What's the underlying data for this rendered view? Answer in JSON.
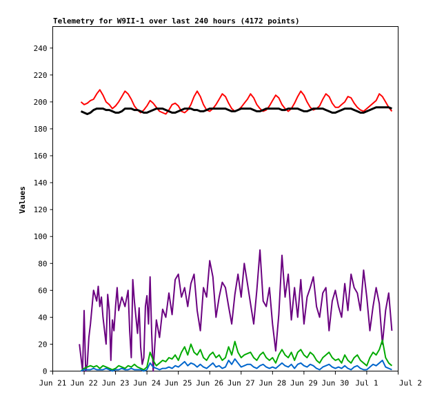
{
  "chart_data": {
    "type": "line",
    "title": "Telemetry for W9II-1 over last 240 hours (4172 points)",
    "ylabel": "Values",
    "xlabel": "",
    "x_tick_labels": [
      "Jun 21",
      "Jun 22",
      "Jun 23",
      "Jun 24",
      "Jun 25",
      "Jun 26",
      "Jun 27",
      "Jun 28",
      "Jun 29",
      "Jun 30",
      "Jul 1",
      "Jul 2"
    ],
    "y_ticks": [
      0,
      20,
      40,
      60,
      80,
      100,
      120,
      140,
      160,
      180,
      200,
      220,
      240
    ],
    "xlim": [
      0,
      11
    ],
    "ylim": [
      0,
      256
    ],
    "grid": false,
    "series": [
      {
        "color": "#ff0000",
        "x": [
          0.9,
          1.0,
          1.1,
          1.2,
          1.3,
          1.4,
          1.5,
          1.6,
          1.7,
          1.8,
          1.9,
          2.0,
          2.1,
          2.2,
          2.3,
          2.4,
          2.5,
          2.6,
          2.7,
          2.8,
          2.9,
          3.0,
          3.1,
          3.2,
          3.3,
          3.4,
          3.5,
          3.6,
          3.7,
          3.8,
          3.9,
          4.0,
          4.1,
          4.2,
          4.3,
          4.4,
          4.5,
          4.6,
          4.7,
          4.8,
          4.9,
          5.0,
          5.1,
          5.2,
          5.3,
          5.4,
          5.5,
          5.6,
          5.7,
          5.8,
          5.9,
          6.0,
          6.1,
          6.2,
          6.3,
          6.4,
          6.5,
          6.6,
          6.7,
          6.8,
          6.9,
          7.0,
          7.1,
          7.2,
          7.3,
          7.4,
          7.5,
          7.6,
          7.7,
          7.8,
          7.9,
          8.0,
          8.1,
          8.2,
          8.3,
          8.4,
          8.5,
          8.6,
          8.7,
          8.8,
          8.9,
          9.0,
          9.1,
          9.2,
          9.3,
          9.4,
          9.5,
          9.6,
          9.7,
          9.8,
          9.9,
          10.0,
          10.1,
          10.2,
          10.3,
          10.4,
          10.5,
          10.6,
          10.7,
          10.8
        ],
        "y": [
          200,
          198,
          199,
          201,
          202,
          206,
          209,
          205,
          200,
          198,
          195,
          197,
          200,
          204,
          208,
          206,
          202,
          197,
          194,
          192,
          194,
          197,
          201,
          199,
          196,
          193,
          192,
          191,
          194,
          198,
          199,
          197,
          193,
          192,
          194,
          198,
          204,
          208,
          204,
          198,
          194,
          193,
          195,
          198,
          202,
          206,
          204,
          199,
          195,
          193,
          194,
          196,
          199,
          202,
          206,
          203,
          198,
          195,
          193,
          194,
          197,
          201,
          205,
          203,
          198,
          195,
          193,
          195,
          199,
          204,
          208,
          205,
          200,
          196,
          194,
          195,
          197,
          202,
          206,
          204,
          199,
          196,
          196,
          198,
          200,
          204,
          203,
          199,
          196,
          194,
          193,
          195,
          197,
          199,
          201,
          206,
          204,
          200,
          196,
          193
        ]
      },
      {
        "color": "#000000",
        "x": [
          0.9,
          1.0,
          1.1,
          1.2,
          1.3,
          1.4,
          1.5,
          1.6,
          1.7,
          1.8,
          1.9,
          2.0,
          2.1,
          2.2,
          2.3,
          2.4,
          2.5,
          2.6,
          2.7,
          2.8,
          2.9,
          3.0,
          3.1,
          3.2,
          3.3,
          3.4,
          3.5,
          3.6,
          3.7,
          3.8,
          3.9,
          4.0,
          4.1,
          4.2,
          4.3,
          4.4,
          4.5,
          4.6,
          4.7,
          4.8,
          4.9,
          5.0,
          5.1,
          5.2,
          5.3,
          5.4,
          5.5,
          5.6,
          5.7,
          5.8,
          5.9,
          6.0,
          6.1,
          6.2,
          6.3,
          6.4,
          6.5,
          6.6,
          6.7,
          6.8,
          6.9,
          7.0,
          7.1,
          7.2,
          7.3,
          7.4,
          7.5,
          7.6,
          7.7,
          7.8,
          7.9,
          8.0,
          8.1,
          8.2,
          8.3,
          8.4,
          8.5,
          8.6,
          8.7,
          8.8,
          8.9,
          9.0,
          9.1,
          9.2,
          9.3,
          9.4,
          9.5,
          9.6,
          9.7,
          9.8,
          9.9,
          10.0,
          10.1,
          10.2,
          10.3,
          10.4,
          10.5,
          10.6,
          10.7,
          10.8
        ],
        "y": [
          193,
          192,
          191,
          192,
          194,
          195,
          195,
          195,
          194,
          194,
          193,
          192,
          192,
          193,
          195,
          195,
          195,
          194,
          194,
          193,
          192,
          192,
          193,
          194,
          195,
          195,
          195,
          194,
          193,
          192,
          192,
          193,
          194,
          195,
          195,
          195,
          194,
          194,
          193,
          193,
          194,
          195,
          195,
          195,
          195,
          195,
          195,
          194,
          193,
          193,
          194,
          195,
          195,
          195,
          195,
          194,
          193,
          193,
          194,
          195,
          195,
          195,
          195,
          195,
          194,
          194,
          195,
          195,
          195,
          195,
          194,
          193,
          193,
          194,
          195,
          195,
          195,
          195,
          194,
          193,
          192,
          192,
          193,
          194,
          195,
          195,
          195,
          194,
          193,
          192,
          192,
          193,
          194,
          195,
          196,
          196,
          196,
          196,
          196,
          195
        ]
      },
      {
        "color": "#6a0080",
        "x": [
          0.85,
          0.95,
          1.0,
          1.05,
          1.1,
          1.15,
          1.2,
          1.3,
          1.4,
          1.45,
          1.5,
          1.55,
          1.6,
          1.7,
          1.75,
          1.8,
          1.85,
          1.9,
          1.95,
          2.0,
          2.05,
          2.1,
          2.2,
          2.3,
          2.4,
          2.45,
          2.5,
          2.55,
          2.6,
          2.7,
          2.75,
          2.8,
          2.85,
          2.9,
          2.95,
          3.0,
          3.05,
          3.1,
          3.15,
          3.2,
          3.3,
          3.4,
          3.5,
          3.6,
          3.7,
          3.8,
          3.9,
          4.0,
          4.1,
          4.2,
          4.3,
          4.4,
          4.5,
          4.6,
          4.7,
          4.8,
          4.9,
          5.0,
          5.1,
          5.2,
          5.3,
          5.4,
          5.5,
          5.6,
          5.7,
          5.8,
          5.9,
          6.0,
          6.1,
          6.2,
          6.3,
          6.4,
          6.5,
          6.6,
          6.7,
          6.8,
          6.9,
          7.0,
          7.1,
          7.2,
          7.3,
          7.4,
          7.5,
          7.6,
          7.7,
          7.8,
          7.9,
          8.0,
          8.1,
          8.2,
          8.3,
          8.4,
          8.5,
          8.6,
          8.7,
          8.8,
          8.9,
          9.0,
          9.1,
          9.2,
          9.3,
          9.4,
          9.5,
          9.6,
          9.7,
          9.8,
          9.9,
          10.0,
          10.1,
          10.2,
          10.3,
          10.4,
          10.5,
          10.6,
          10.7,
          10.8
        ],
        "y": [
          20,
          0,
          45,
          0,
          5,
          25,
          35,
          60,
          52,
          63,
          48,
          55,
          40,
          20,
          57,
          45,
          8,
          38,
          30,
          48,
          62,
          45,
          55,
          48,
          60,
          30,
          10,
          68,
          52,
          28,
          47,
          18,
          5,
          10,
          48,
          56,
          35,
          70,
          28,
          0,
          38,
          25,
          46,
          40,
          58,
          42,
          68,
          72,
          55,
          62,
          48,
          65,
          72,
          45,
          30,
          62,
          55,
          82,
          70,
          40,
          55,
          66,
          62,
          48,
          35,
          57,
          72,
          55,
          80,
          65,
          50,
          35,
          60,
          90,
          52,
          48,
          62,
          35,
          15,
          42,
          86,
          55,
          72,
          38,
          62,
          40,
          68,
          35,
          55,
          62,
          70,
          48,
          40,
          58,
          62,
          30,
          52,
          60,
          48,
          40,
          65,
          45,
          72,
          62,
          58,
          45,
          75,
          55,
          30,
          48,
          62,
          50,
          20,
          45,
          58,
          30
        ]
      },
      {
        "color": "#00aa00",
        "x": [
          0.9,
          1.0,
          1.1,
          1.2,
          1.3,
          1.4,
          1.5,
          1.6,
          1.7,
          1.8,
          1.9,
          2.0,
          2.1,
          2.2,
          2.3,
          2.4,
          2.5,
          2.6,
          2.7,
          2.8,
          2.9,
          3.0,
          3.1,
          3.2,
          3.3,
          3.4,
          3.5,
          3.6,
          3.7,
          3.8,
          3.9,
          4.0,
          4.1,
          4.2,
          4.3,
          4.4,
          4.5,
          4.6,
          4.7,
          4.8,
          4.9,
          5.0,
          5.1,
          5.2,
          5.3,
          5.4,
          5.5,
          5.6,
          5.7,
          5.8,
          5.9,
          6.0,
          6.1,
          6.2,
          6.3,
          6.4,
          6.5,
          6.6,
          6.7,
          6.8,
          6.9,
          7.0,
          7.1,
          7.2,
          7.3,
          7.4,
          7.5,
          7.6,
          7.7,
          7.8,
          7.9,
          8.0,
          8.1,
          8.2,
          8.3,
          8.4,
          8.5,
          8.6,
          8.7,
          8.8,
          8.9,
          9.0,
          9.1,
          9.2,
          9.3,
          9.4,
          9.5,
          9.6,
          9.7,
          9.8,
          9.9,
          10.0,
          10.1,
          10.2,
          10.3,
          10.4,
          10.5,
          10.6,
          10.7,
          10.8
        ],
        "y": [
          0,
          2,
          3,
          4,
          3,
          4,
          2,
          4,
          3,
          2,
          1,
          2,
          4,
          3,
          2,
          4,
          3,
          5,
          3,
          2,
          1,
          3,
          14,
          8,
          4,
          6,
          8,
          7,
          10,
          9,
          12,
          8,
          14,
          18,
          12,
          20,
          14,
          12,
          16,
          10,
          8,
          12,
          14,
          10,
          12,
          8,
          10,
          18,
          12,
          22,
          14,
          10,
          12,
          13,
          14,
          10,
          8,
          12,
          14,
          10,
          8,
          10,
          6,
          12,
          16,
          12,
          10,
          14,
          8,
          14,
          16,
          12,
          10,
          14,
          12,
          8,
          6,
          10,
          12,
          14,
          10,
          8,
          9,
          6,
          12,
          8,
          6,
          10,
          12,
          8,
          6,
          4,
          10,
          14,
          12,
          16,
          23,
          10,
          6,
          4
        ]
      },
      {
        "color": "#0066cc",
        "x": [
          0.9,
          1.0,
          1.1,
          1.2,
          1.3,
          1.4,
          1.5,
          1.6,
          1.7,
          1.8,
          1.9,
          2.0,
          2.1,
          2.2,
          2.3,
          2.4,
          2.5,
          2.6,
          2.7,
          2.8,
          2.9,
          3.0,
          3.1,
          3.2,
          3.3,
          3.4,
          3.5,
          3.6,
          3.7,
          3.8,
          3.9,
          4.0,
          4.1,
          4.2,
          4.3,
          4.4,
          4.5,
          4.6,
          4.7,
          4.8,
          4.9,
          5.0,
          5.1,
          5.2,
          5.3,
          5.4,
          5.5,
          5.6,
          5.7,
          5.8,
          5.9,
          6.0,
          6.1,
          6.2,
          6.3,
          6.4,
          6.5,
          6.6,
          6.7,
          6.8,
          6.9,
          7.0,
          7.1,
          7.2,
          7.3,
          7.4,
          7.5,
          7.6,
          7.7,
          7.8,
          7.9,
          8.0,
          8.1,
          8.2,
          8.3,
          8.4,
          8.5,
          8.6,
          8.7,
          8.8,
          8.9,
          9.0,
          9.1,
          9.2,
          9.3,
          9.4,
          9.5,
          9.6,
          9.7,
          9.8,
          9.9,
          10.0,
          10.1,
          10.2,
          10.3,
          10.4,
          10.5,
          10.6,
          10.7,
          10.8
        ],
        "y": [
          0,
          1,
          1,
          1,
          2,
          1,
          1,
          1,
          2,
          1,
          0,
          1,
          1,
          2,
          1,
          1,
          2,
          1,
          1,
          1,
          0,
          1,
          6,
          3,
          2,
          1,
          2,
          2,
          3,
          2,
          4,
          3,
          5,
          7,
          4,
          6,
          5,
          3,
          5,
          3,
          2,
          4,
          6,
          3,
          4,
          2,
          3,
          8,
          5,
          9,
          6,
          3,
          4,
          5,
          5,
          3,
          2,
          4,
          5,
          3,
          2,
          3,
          2,
          4,
          6,
          4,
          3,
          5,
          2,
          5,
          6,
          4,
          3,
          5,
          4,
          2,
          1,
          3,
          4,
          5,
          3,
          2,
          3,
          2,
          4,
          2,
          1,
          3,
          4,
          2,
          1,
          1,
          3,
          5,
          4,
          6,
          8,
          3,
          2,
          1
        ]
      }
    ]
  }
}
